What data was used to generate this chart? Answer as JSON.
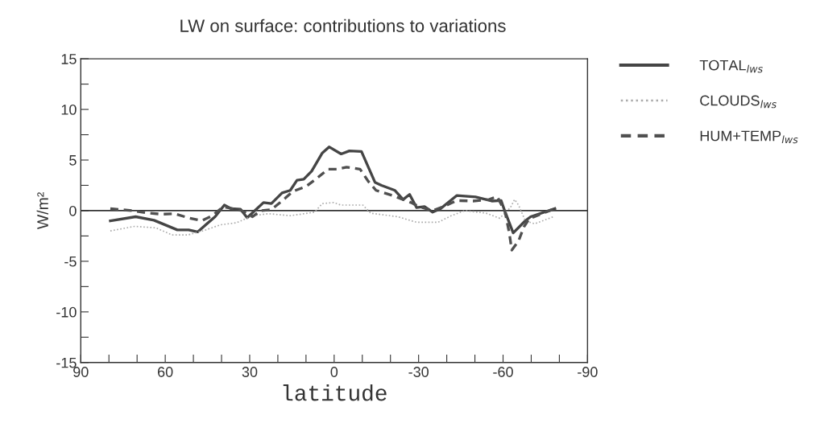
{
  "chart_data": {
    "type": "line",
    "title": "LW on surface: contributions to variations",
    "xlabel": "latitude",
    "ylabel": "W/m²",
    "xlim": [
      90,
      -90
    ],
    "ylim": [
      -15,
      15
    ],
    "xticks": [
      90,
      {
        "value": 80,
        "label": null
      },
      {
        "value": 70,
        "label": null
      },
      60,
      {
        "value": 50,
        "label": null
      },
      {
        "value": 40,
        "label": null
      },
      30,
      {
        "value": 20,
        "label": null
      },
      {
        "value": 10,
        "label": null
      },
      0,
      {
        "value": -10,
        "label": null
      },
      {
        "value": -20,
        "label": null
      },
      -30,
      {
        "value": -40,
        "label": null
      },
      {
        "value": -50,
        "label": null
      },
      -60,
      {
        "value": -70,
        "label": null
      },
      {
        "value": -80,
        "label": null
      },
      -90
    ],
    "yticks": [
      -15,
      {
        "value": -12.5,
        "label": null
      },
      -10,
      {
        "value": -7.5,
        "label": null
      },
      -5,
      {
        "value": -2.5,
        "label": null
      },
      0,
      {
        "value": 2.5,
        "label": null
      },
      5,
      {
        "value": 7.5,
        "label": null
      },
      10,
      {
        "value": 12.5,
        "label": null
      },
      15
    ],
    "grid": false,
    "legend": "right",
    "marker": "none",
    "ref_lines": [
      {
        "axis": "y",
        "value": 0,
        "label": null,
        "color": "#333333",
        "line_style": "solid"
      }
    ],
    "series": [
      {
        "name": "TOTAL$_{lws}$",
        "color": "#454545",
        "line_style": "solid",
        "x": [
          79.5,
          70.5,
          64,
          55.7,
          51.7,
          48.5,
          42.3,
          39,
          36.6,
          33.3,
          30.9,
          25.1,
          22.3,
          18.5,
          15.6,
          13.2,
          10.8,
          8,
          4.2,
          1.8,
          -2.5,
          -5.4,
          -9.7,
          -14.5,
          -16.8,
          -21.6,
          -24.5,
          -26.8,
          -29.3,
          -32.1,
          -35,
          -37.8,
          -43.6,
          -50.2,
          -56,
          -59.3,
          -60.7,
          -63.6,
          -67.9,
          -69.8,
          -78.4
        ],
        "values": [
          -1.0,
          -0.6,
          -0.95,
          -1.9,
          -1.9,
          -2.1,
          -0.6,
          0.55,
          0.2,
          0.15,
          -0.7,
          0.8,
          0.7,
          1.75,
          2.0,
          3.0,
          3.1,
          3.9,
          5.7,
          6.3,
          5.6,
          5.9,
          5.85,
          2.8,
          2.5,
          2.0,
          1.1,
          1.6,
          0.3,
          0.4,
          -0.15,
          0.2,
          1.5,
          1.35,
          0.95,
          1.0,
          -0.1,
          -2.2,
          -1.0,
          -0.6,
          0.2
        ]
      },
      {
        "name": "CLOUDS$_{lws}$",
        "color": "#aaaaaa",
        "line_style": "dotted",
        "x": [
          79.5,
          70.9,
          63.3,
          57.6,
          51.9,
          46.1,
          40.4,
          34.7,
          29,
          23.2,
          15.6,
          7,
          4.2,
          0.3,
          -2.5,
          -10.2,
          -13,
          -22.6,
          -29.3,
          -36.9,
          -41.6,
          -46.4,
          -54,
          -58.8,
          -62.6,
          -64.1,
          -65.5,
          -67.9,
          -71.2,
          -77.9
        ],
        "values": [
          -2.0,
          -1.55,
          -1.7,
          -2.4,
          -2.4,
          -1.95,
          -1.4,
          -1.2,
          -0.5,
          -0.3,
          -0.5,
          -0.15,
          0.7,
          0.8,
          0.55,
          0.55,
          -0.25,
          -0.6,
          -1.15,
          -1.15,
          -0.5,
          0,
          -0.25,
          -0.75,
          0.3,
          1.1,
          0.55,
          -1.0,
          -1.3,
          -0.6
        ]
      },
      {
        "name": "HUM+TEMP$_{lws}$",
        "color": "#505050",
        "line_style": "dashed",
        "x": [
          79.5,
          71.9,
          67.1,
          61.4,
          56.6,
          51.9,
          47.1,
          43.3,
          39.4,
          32.8,
          29,
          26.1,
          22.3,
          17.5,
          14.7,
          9.9,
          6.1,
          2.2,
          -1.1,
          -4.4,
          -9.2,
          -12.1,
          -14.9,
          -20.7,
          -24.5,
          -27.3,
          -30.2,
          -35,
          -38.8,
          -43.6,
          -49.3,
          -55,
          -57.9,
          -60.7,
          -62.2,
          -63.1,
          -65.5,
          -67.4,
          -69.3,
          -78.4
        ],
        "values": [
          0.2,
          0,
          -0.2,
          -0.35,
          -0.3,
          -0.7,
          -1.0,
          -0.5,
          0.4,
          0.0,
          -0.6,
          0,
          0.1,
          1.2,
          1.9,
          2.4,
          3.2,
          4.1,
          4.1,
          4.3,
          4.1,
          2.9,
          2.0,
          1.5,
          1.1,
          0.8,
          0.4,
          0,
          0.4,
          1.0,
          0.95,
          1.1,
          1.4,
          -0.1,
          -2.2,
          -3.9,
          -3.0,
          -1.6,
          -0.8,
          0.2
        ]
      }
    ]
  }
}
